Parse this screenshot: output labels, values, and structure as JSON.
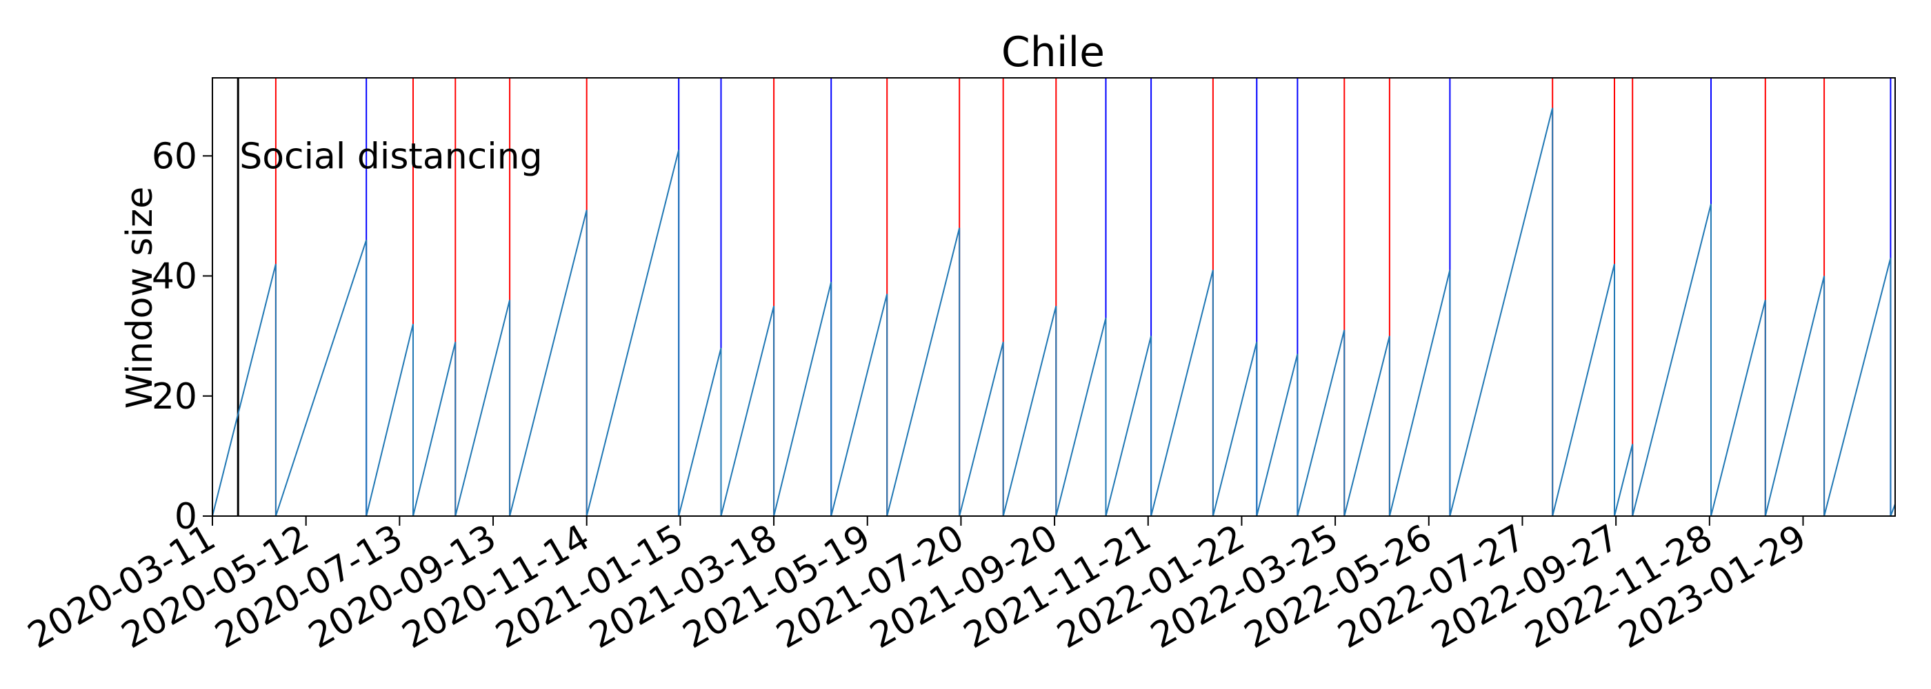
{
  "chart_data": {
    "type": "line",
    "title": "Chile",
    "xlabel": "",
    "ylabel": "Window size",
    "xlim": [
      "2020-03-11",
      "2023-03-31"
    ],
    "ylim": [
      0,
      73
    ],
    "yticks": [
      0,
      20,
      40,
      60
    ],
    "xticks": [
      "2020-03-11",
      "2020-05-12",
      "2020-07-13",
      "2020-09-13",
      "2020-11-14",
      "2021-01-15",
      "2021-03-18",
      "2021-05-19",
      "2021-07-20",
      "2021-09-20",
      "2021-11-21",
      "2022-01-22",
      "2022-03-25",
      "2022-05-26",
      "2022-07-27",
      "2022-09-27",
      "2022-11-28",
      "2023-01-29"
    ],
    "grid": false,
    "annotations": [
      {
        "text": "Social distancing",
        "x": "2020-03-28",
        "y": 60
      }
    ],
    "event_lines": [
      {
        "date": "2020-03-28",
        "color": "#000000"
      },
      {
        "date": "2020-04-22",
        "color": "#ff0000"
      },
      {
        "date": "2020-06-21",
        "color": "#0000ff"
      },
      {
        "date": "2020-07-22",
        "color": "#ff0000"
      },
      {
        "date": "2020-08-19",
        "color": "#ff0000"
      },
      {
        "date": "2020-09-24",
        "color": "#ff0000"
      },
      {
        "date": "2020-11-14",
        "color": "#ff0000"
      },
      {
        "date": "2021-01-14",
        "color": "#0000ff"
      },
      {
        "date": "2021-02-11",
        "color": "#0000ff"
      },
      {
        "date": "2021-03-18",
        "color": "#ff0000"
      },
      {
        "date": "2021-04-25",
        "color": "#0000ff"
      },
      {
        "date": "2021-06-01",
        "color": "#ff0000"
      },
      {
        "date": "2021-07-19",
        "color": "#ff0000"
      },
      {
        "date": "2021-08-17",
        "color": "#ff0000"
      },
      {
        "date": "2021-09-21",
        "color": "#ff0000"
      },
      {
        "date": "2021-10-24",
        "color": "#0000ff"
      },
      {
        "date": "2021-11-23",
        "color": "#0000ff"
      },
      {
        "date": "2022-01-03",
        "color": "#ff0000"
      },
      {
        "date": "2022-02-01",
        "color": "#0000ff"
      },
      {
        "date": "2022-02-28",
        "color": "#0000ff"
      },
      {
        "date": "2022-03-31",
        "color": "#ff0000"
      },
      {
        "date": "2022-04-30",
        "color": "#ff0000"
      },
      {
        "date": "2022-06-09",
        "color": "#0000ff"
      },
      {
        "date": "2022-08-16",
        "color": "#ff0000"
      },
      {
        "date": "2022-09-26",
        "color": "#ff0000"
      },
      {
        "date": "2022-10-08",
        "color": "#ff0000"
      },
      {
        "date": "2022-11-29",
        "color": "#0000ff"
      },
      {
        "date": "2023-01-04",
        "color": "#ff0000"
      },
      {
        "date": "2023-02-12",
        "color": "#ff0000"
      },
      {
        "date": "2023-03-28",
        "color": "#0000ff"
      }
    ],
    "series": [
      {
        "color": "#1f77b4",
        "points": [
          [
            "2020-03-11",
            0
          ],
          [
            "2020-04-22",
            42
          ],
          [
            "2020-04-22",
            0
          ],
          [
            "2020-06-21",
            46
          ],
          [
            "2020-06-21",
            0
          ],
          [
            "2020-07-22",
            32
          ],
          [
            "2020-07-22",
            0
          ],
          [
            "2020-08-19",
            29
          ],
          [
            "2020-08-19",
            0
          ],
          [
            "2020-09-24",
            36
          ],
          [
            "2020-09-24",
            0
          ],
          [
            "2020-11-14",
            51
          ],
          [
            "2020-11-14",
            0
          ],
          [
            "2021-01-14",
            61
          ],
          [
            "2021-01-14",
            0
          ],
          [
            "2021-02-11",
            28
          ],
          [
            "2021-02-11",
            0
          ],
          [
            "2021-03-18",
            35
          ],
          [
            "2021-03-18",
            0
          ],
          [
            "2021-04-25",
            39
          ],
          [
            "2021-04-25",
            0
          ],
          [
            "2021-06-01",
            37
          ],
          [
            "2021-06-01",
            0
          ],
          [
            "2021-07-19",
            48
          ],
          [
            "2021-07-19",
            0
          ],
          [
            "2021-08-17",
            29
          ],
          [
            "2021-08-17",
            0
          ],
          [
            "2021-09-21",
            35
          ],
          [
            "2021-09-21",
            0
          ],
          [
            "2021-10-24",
            33
          ],
          [
            "2021-10-24",
            0
          ],
          [
            "2021-11-23",
            30
          ],
          [
            "2021-11-23",
            0
          ],
          [
            "2022-01-03",
            41
          ],
          [
            "2022-01-03",
            0
          ],
          [
            "2022-02-01",
            29
          ],
          [
            "2022-02-01",
            0
          ],
          [
            "2022-02-28",
            27
          ],
          [
            "2022-02-28",
            0
          ],
          [
            "2022-03-31",
            31
          ],
          [
            "2022-03-31",
            0
          ],
          [
            "2022-04-30",
            30
          ],
          [
            "2022-04-30",
            0
          ],
          [
            "2022-06-09",
            41
          ],
          [
            "2022-06-09",
            0
          ],
          [
            "2022-08-16",
            68
          ],
          [
            "2022-08-16",
            0
          ],
          [
            "2022-09-26",
            42
          ],
          [
            "2022-09-26",
            0
          ],
          [
            "2022-10-08",
            12
          ],
          [
            "2022-10-08",
            0
          ],
          [
            "2022-11-29",
            52
          ],
          [
            "2022-11-29",
            0
          ],
          [
            "2023-01-04",
            36
          ],
          [
            "2023-01-04",
            0
          ],
          [
            "2023-02-12",
            40
          ],
          [
            "2023-02-12",
            0
          ],
          [
            "2023-03-28",
            43
          ],
          [
            "2023-03-28",
            0
          ],
          [
            "2023-03-31",
            2
          ]
        ]
      }
    ]
  }
}
